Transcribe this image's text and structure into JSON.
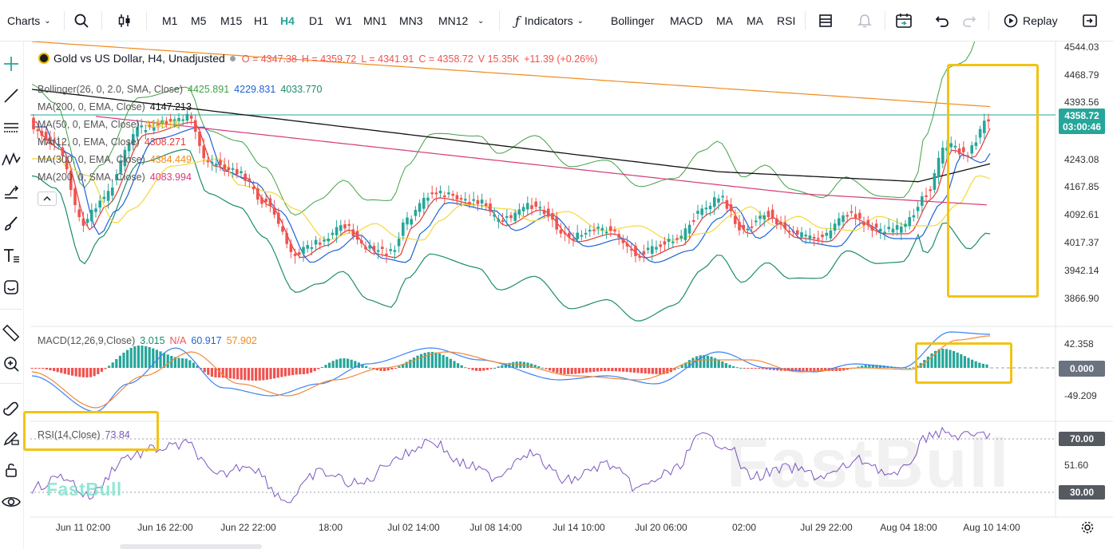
{
  "toolbar": {
    "charts": "Charts",
    "timeframes": [
      "M1",
      "M5",
      "M15",
      "H1",
      "H4",
      "D1",
      "W1",
      "MN1",
      "MN3",
      "MN12"
    ],
    "indicators": "Indicators",
    "shortcuts": [
      "Bollinger",
      "MACD",
      "MA",
      "MA",
      "RSI"
    ],
    "replay": "Replay"
  },
  "legend": {
    "title": "Gold vs US Dollar, H4, Unadjusted",
    "O": "O = 4347.38",
    "H": "H = 4359.72",
    "L": "L = 4341.91",
    "C": "C = 4358.72",
    "V": "V 15.35K",
    "chg": "+11.39 (+0.26%)",
    "boll": [
      "Bollinger(26, 0, 2.0, SMA, Close)",
      "4425.891",
      "4229.831",
      "4033.770"
    ],
    "ma200": [
      "MA(200, 0, EMA, Close)",
      "4147.213"
    ],
    "ma50": [
      "MA(50, 0, EMA, Close)",
      "4186.96"
    ],
    "ma12": [
      "MA(12, 0, EMA, Close)",
      "4308.271"
    ],
    "ma300": [
      "MA(300, 0, EMA, Close)",
      "4384.449"
    ],
    "ma200s": [
      "MA(200, 0, SMA, Close)",
      "4083.994"
    ]
  },
  "macd": {
    "label": "MACD(12,26,9,Close)",
    "v1": "3.015",
    "v2": "N/A",
    "v3": "60.917",
    "v4": "57.902"
  },
  "rsi": {
    "label": "RSI(14,Close)",
    "value": "73.84"
  },
  "price_axis": [
    "4544.03",
    "4468.79",
    "4393.56",
    "4318.32",
    "4243.08",
    "4167.85",
    "4092.61",
    "4017.37",
    "3942.14",
    "3866.90"
  ],
  "last_price": "4358.72",
  "countdown": "03:00:46",
  "macd_axis": [
    "42.358",
    "0.000",
    "-49.209"
  ],
  "rsi_axis": [
    "70.00",
    "51.60",
    "30.00"
  ],
  "x_axis": [
    "Jun 11 02:00",
    "Jun 16 22:00",
    "Jun 22 22:00",
    "18:00",
    "Jul 02 14:00",
    "Jul 08 14:00",
    "Jul 14 10:00",
    "Jul 20 06:00",
    "02:00",
    "Jul 29 22:00",
    "Aug 04 18:00",
    "Aug 10 14:00"
  ],
  "watermark": "FastBull",
  "colors": {
    "up": "#26a69a",
    "down": "#ef5350",
    "accent": "#26a69a",
    "highlight": "#f2c314"
  },
  "icons": [
    "chevron-down-icon",
    "search-icon",
    "candle-type-icon",
    "fx-icon",
    "layout-icon",
    "alert-icon",
    "calendar-icon",
    "undo-icon",
    "redo-icon",
    "replay-icon",
    "fullscreen-icon",
    "settings-icon"
  ]
}
